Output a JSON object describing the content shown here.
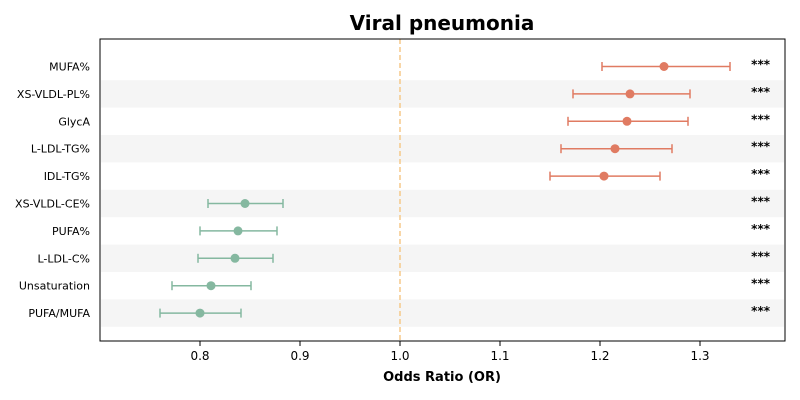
{
  "chart_data": {
    "type": "forest",
    "title": "Viral pneumonia",
    "xlabel": "Odds Ratio (OR)",
    "xlim": [
      0.7,
      1.385
    ],
    "xticks": [
      "0.8",
      "0.9",
      "1.0",
      "1.1",
      "1.2",
      "1.3"
    ],
    "reference_line": 1.0,
    "colors": {
      "positive": "#e07b62",
      "negative": "#85b8a0",
      "reference": "#f5c98a",
      "band": "#f5f5f5"
    },
    "rows": [
      {
        "label": "MUFA%",
        "or": 1.264,
        "lo": 1.202,
        "hi": 1.33,
        "sig": "***"
      },
      {
        "label": "XS-VLDL-PL%",
        "or": 1.23,
        "lo": 1.173,
        "hi": 1.29,
        "sig": "***"
      },
      {
        "label": "GlycA",
        "or": 1.227,
        "lo": 1.168,
        "hi": 1.288,
        "sig": "***"
      },
      {
        "label": "L-LDL-TG%",
        "or": 1.215,
        "lo": 1.161,
        "hi": 1.272,
        "sig": "***"
      },
      {
        "label": "IDL-TG%",
        "or": 1.204,
        "lo": 1.15,
        "hi": 1.26,
        "sig": "***"
      },
      {
        "label": "XS-VLDL-CE%",
        "or": 0.845,
        "lo": 0.808,
        "hi": 0.883,
        "sig": "***"
      },
      {
        "label": "PUFA%",
        "or": 0.838,
        "lo": 0.8,
        "hi": 0.877,
        "sig": "***"
      },
      {
        "label": "L-LDL-C%",
        "or": 0.835,
        "lo": 0.798,
        "hi": 0.873,
        "sig": "***"
      },
      {
        "label": "Unsaturation",
        "or": 0.811,
        "lo": 0.772,
        "hi": 0.851,
        "sig": "***"
      },
      {
        "label": "PUFA/MUFA",
        "or": 0.8,
        "lo": 0.76,
        "hi": 0.841,
        "sig": "***"
      }
    ]
  }
}
